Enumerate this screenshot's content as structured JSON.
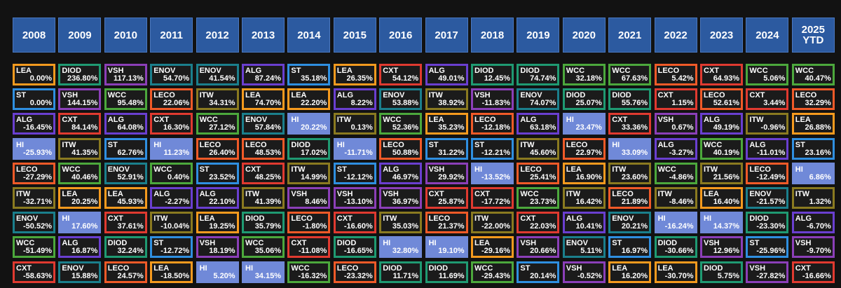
{
  "chart_data": {
    "type": "table",
    "title": "",
    "years": [
      "2008",
      "2009",
      "2010",
      "2011",
      "2012",
      "2013",
      "2014",
      "2015",
      "2016",
      "2017",
      "2018",
      "2019",
      "2020",
      "2021",
      "2022",
      "2023",
      "2024",
      "2025\nYTD"
    ],
    "ticker_colors": {
      "LEA": "#f59a1e",
      "DIOD": "#1f9a72",
      "VSH": "#8b3fb8",
      "ENOV": "#1b7f8c",
      "ALG": "#6a3fd0",
      "ST": "#2f8fe0",
      "CXT": "#e03a30",
      "WCC": "#4ca83c",
      "LECO": "#f05a28",
      "ITW": "#8a7a20",
      "HI": "#7089d8"
    },
    "columns": [
      [
        [
          "LEA",
          "0.00%"
        ],
        [
          "ST",
          "0.00%"
        ],
        [
          "ALG",
          "-16.45%"
        ],
        [
          "HI",
          "-25.93%"
        ],
        [
          "LECO",
          "-27.29%"
        ],
        [
          "ITW",
          "-32.71%"
        ],
        [
          "ENOV",
          "-50.52%"
        ],
        [
          "WCC",
          "-51.49%"
        ],
        [
          "CXT",
          "-58.63%"
        ]
      ],
      [
        [
          "DIOD",
          "236.80%"
        ],
        [
          "VSH",
          "144.15%"
        ],
        [
          "CXT",
          "84.14%"
        ],
        [
          "ITW",
          "41.35%"
        ],
        [
          "WCC",
          "40.46%"
        ],
        [
          "LEA",
          "20.25%"
        ],
        [
          "HI",
          "17.60%"
        ],
        [
          "ALG",
          "16.87%"
        ],
        [
          "ENOV",
          "15.88%"
        ]
      ],
      [
        [
          "VSH",
          "117.13%"
        ],
        [
          "WCC",
          "95.48%"
        ],
        [
          "ALG",
          "64.08%"
        ],
        [
          "ST",
          "62.76%"
        ],
        [
          "ENOV",
          "52.91%"
        ],
        [
          "LEA",
          "45.93%"
        ],
        [
          "CXT",
          "37.61%"
        ],
        [
          "DIOD",
          "32.24%"
        ],
        [
          "LECO",
          "24.57%"
        ]
      ],
      [
        [
          "ENOV",
          "54.70%"
        ],
        [
          "LECO",
          "22.06%"
        ],
        [
          "CXT",
          "16.30%"
        ],
        [
          "HI",
          "11.23%"
        ],
        [
          "WCC",
          "0.40%"
        ],
        [
          "ALG",
          "-2.27%"
        ],
        [
          "ITW",
          "-10.04%"
        ],
        [
          "ST",
          "-12.72%"
        ],
        [
          "LEA",
          "-18.50%"
        ]
      ],
      [
        [
          "ENOV",
          "41.54%"
        ],
        [
          "ITW",
          "34.31%"
        ],
        [
          "WCC",
          "27.12%"
        ],
        [
          "LECO",
          "26.40%"
        ],
        [
          "ST",
          "23.52%"
        ],
        [
          "ALG",
          "22.10%"
        ],
        [
          "LEA",
          "19.25%"
        ],
        [
          "VSH",
          "18.19%"
        ],
        [
          "HI",
          "5.20%"
        ]
      ],
      [
        [
          "ALG",
          "87.24%"
        ],
        [
          "LEA",
          "74.70%"
        ],
        [
          "ENOV",
          "57.84%"
        ],
        [
          "LECO",
          "48.53%"
        ],
        [
          "CXT",
          "48.25%"
        ],
        [
          "ITW",
          "41.39%"
        ],
        [
          "DIOD",
          "35.79%"
        ],
        [
          "WCC",
          "35.06%"
        ],
        [
          "HI",
          "34.15%"
        ]
      ],
      [
        [
          "ST",
          "35.18%"
        ],
        [
          "LEA",
          "22.20%"
        ],
        [
          "HI",
          "20.22%"
        ],
        [
          "DIOD",
          "17.02%"
        ],
        [
          "ITW",
          "14.99%"
        ],
        [
          "VSH",
          "8.46%"
        ],
        [
          "LECO",
          "-1.80%"
        ],
        [
          "CXT",
          "-11.08%"
        ],
        [
          "WCC",
          "-16.32%"
        ]
      ],
      [
        [
          "LEA",
          "26.35%"
        ],
        [
          "ALG",
          "8.22%"
        ],
        [
          "ITW",
          "0.13%"
        ],
        [
          "HI",
          "-11.71%"
        ],
        [
          "ST",
          "-12.12%"
        ],
        [
          "VSH",
          "-13.10%"
        ],
        [
          "CXT",
          "-16.60%"
        ],
        [
          "DIOD",
          "-16.65%"
        ],
        [
          "LECO",
          "-23.32%"
        ]
      ],
      [
        [
          "CXT",
          "54.12%"
        ],
        [
          "ENOV",
          "53.88%"
        ],
        [
          "WCC",
          "52.36%"
        ],
        [
          "LECO",
          "50.88%"
        ],
        [
          "ALG",
          "46.97%"
        ],
        [
          "VSH",
          "36.97%"
        ],
        [
          "ITW",
          "35.03%"
        ],
        [
          "HI",
          "32.80%"
        ],
        [
          "DIOD",
          "11.71%"
        ]
      ],
      [
        [
          "ALG",
          "49.01%"
        ],
        [
          "ITW",
          "38.92%"
        ],
        [
          "LEA",
          "35.23%"
        ],
        [
          "ST",
          "31.22%"
        ],
        [
          "VSH",
          "29.92%"
        ],
        [
          "CXT",
          "25.87%"
        ],
        [
          "LECO",
          "21.37%"
        ],
        [
          "HI",
          "19.10%"
        ],
        [
          "DIOD",
          "11.69%"
        ]
      ],
      [
        [
          "DIOD",
          "12.45%"
        ],
        [
          "VSH",
          "-11.83%"
        ],
        [
          "LECO",
          "-12.18%"
        ],
        [
          "ST",
          "-12.21%"
        ],
        [
          "HI",
          "-13.52%"
        ],
        [
          "CXT",
          "-17.72%"
        ],
        [
          "ITW",
          "-22.00%"
        ],
        [
          "LEA",
          "-29.16%"
        ],
        [
          "WCC",
          "-29.43%"
        ]
      ],
      [
        [
          "DIOD",
          "74.74%"
        ],
        [
          "ENOV",
          "74.07%"
        ],
        [
          "ALG",
          "63.18%"
        ],
        [
          "ITW",
          "45.60%"
        ],
        [
          "LECO",
          "25.41%"
        ],
        [
          "WCC",
          "23.73%"
        ],
        [
          "CXT",
          "22.03%"
        ],
        [
          "VSH",
          "20.66%"
        ],
        [
          "ST",
          "20.14%"
        ]
      ],
      [
        [
          "WCC",
          "32.18%"
        ],
        [
          "DIOD",
          "25.07%"
        ],
        [
          "HI",
          "23.47%"
        ],
        [
          "LECO",
          "22.97%"
        ],
        [
          "LEA",
          "16.90%"
        ],
        [
          "ITW",
          "16.42%"
        ],
        [
          "ALG",
          "10.41%"
        ],
        [
          "ENOV",
          "5.11%"
        ],
        [
          "VSH",
          "-0.52%"
        ]
      ],
      [
        [
          "WCC",
          "67.63%"
        ],
        [
          "DIOD",
          "55.76%"
        ],
        [
          "CXT",
          "33.36%"
        ],
        [
          "HI",
          "33.09%"
        ],
        [
          "ITW",
          "23.60%"
        ],
        [
          "LECO",
          "21.89%"
        ],
        [
          "ENOV",
          "20.21%"
        ],
        [
          "ST",
          "16.97%"
        ],
        [
          "LEA",
          "16.20%"
        ]
      ],
      [
        [
          "LECO",
          "5.42%"
        ],
        [
          "CXT",
          "1.15%"
        ],
        [
          "VSH",
          "0.67%"
        ],
        [
          "ALG",
          "-3.27%"
        ],
        [
          "WCC",
          "-4.86%"
        ],
        [
          "ITW",
          "-8.46%"
        ],
        [
          "HI",
          "-16.24%"
        ],
        [
          "DIOD",
          "-30.66%"
        ],
        [
          "LEA",
          "-30.70%"
        ]
      ],
      [
        [
          "CXT",
          "64.93%"
        ],
        [
          "LECO",
          "52.61%"
        ],
        [
          "ALG",
          "49.19%"
        ],
        [
          "WCC",
          "40.19%"
        ],
        [
          "ITW",
          "21.56%"
        ],
        [
          "LEA",
          "16.40%"
        ],
        [
          "HI",
          "14.37%"
        ],
        [
          "VSH",
          "12.96%"
        ],
        [
          "DIOD",
          "5.75%"
        ]
      ],
      [
        [
          "WCC",
          "5.06%"
        ],
        [
          "CXT",
          "3.44%"
        ],
        [
          "ITW",
          "-0.96%"
        ],
        [
          "ALG",
          "-11.01%"
        ],
        [
          "LECO",
          "-12.49%"
        ],
        [
          "ENOV",
          "-21.57%"
        ],
        [
          "DIOD",
          "-23.30%"
        ],
        [
          "ST",
          "-25.96%"
        ],
        [
          "VSH",
          "-27.82%"
        ]
      ],
      [
        [
          "WCC",
          "40.47%"
        ],
        [
          "LECO",
          "32.29%"
        ],
        [
          "LEA",
          "26.88%"
        ],
        [
          "ST",
          "23.16%"
        ],
        [
          "HI",
          "6.86%"
        ],
        [
          "ITW",
          "1.32%"
        ],
        [
          "ALG",
          "-6.70%"
        ],
        [
          "VSH",
          "-9.70%"
        ],
        [
          "CXT",
          "-16.66%"
        ]
      ]
    ]
  }
}
